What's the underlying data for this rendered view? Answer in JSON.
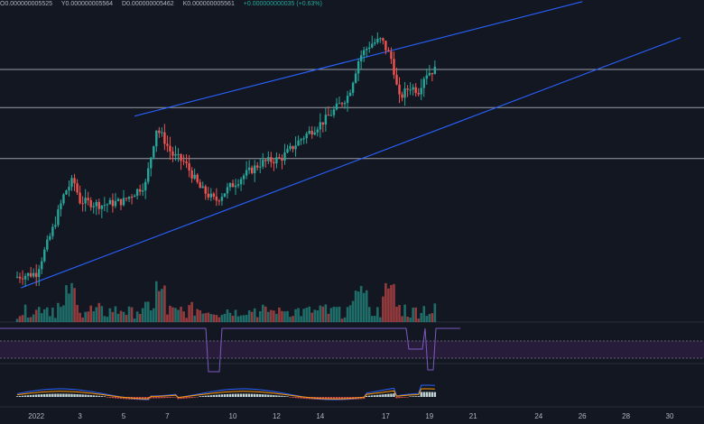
{
  "legend": {
    "open": "0.000000005525",
    "high": "0.000000005564",
    "low": "0.000000005462",
    "close": "0.000000005561",
    "change": "+0.000000000035 (+0.63%)"
  },
  "colors": {
    "background": "#131722",
    "up": "#26a69a",
    "down": "#ef5350",
    "channel": "#2962ff",
    "horizontal_line": "#b2b5be",
    "rsi_line": "#7e57c2",
    "rsi_band": "#2a1e3d",
    "macd_line": "#2962ff",
    "signal_line": "#ff9800"
  },
  "x_axis": {
    "ticks": [
      {
        "label": "2022",
        "day": 1
      },
      {
        "label": "3",
        "day": 3
      },
      {
        "label": "5",
        "day": 5
      },
      {
        "label": "7",
        "day": 7
      },
      {
        "label": "10",
        "day": 10
      },
      {
        "label": "12",
        "day": 12
      },
      {
        "label": "14",
        "day": 14
      },
      {
        "label": "17",
        "day": 17
      },
      {
        "label": "19",
        "day": 19
      },
      {
        "label": "21",
        "day": 21
      },
      {
        "label": "24",
        "day": 24
      },
      {
        "label": "26",
        "day": 26
      },
      {
        "label": "28",
        "day": 28
      },
      {
        "label": "30",
        "day": 30
      }
    ]
  },
  "chart_data": {
    "type": "candlestick",
    "x_unit": "day of January 2022",
    "close_series": [
      {
        "day": 0.0,
        "close": 4.1
      },
      {
        "day": 1.0,
        "close": 4.2
      },
      {
        "day": 1.8,
        "close": 5.3
      },
      {
        "day": 2.3,
        "close": 6.1
      },
      {
        "day": 2.7,
        "close": 6.4
      },
      {
        "day": 3.0,
        "close": 5.9
      },
      {
        "day": 4.0,
        "close": 5.8
      },
      {
        "day": 5.0,
        "close": 5.9
      },
      {
        "day": 6.0,
        "close": 6.3
      },
      {
        "day": 6.5,
        "close": 7.6
      },
      {
        "day": 6.8,
        "close": 7.4
      },
      {
        "day": 7.2,
        "close": 7.0
      },
      {
        "day": 7.8,
        "close": 6.8
      },
      {
        "day": 8.5,
        "close": 6.2
      },
      {
        "day": 9.2,
        "close": 5.9
      },
      {
        "day": 9.8,
        "close": 6.2
      },
      {
        "day": 10.5,
        "close": 6.5
      },
      {
        "day": 11.3,
        "close": 6.8
      },
      {
        "day": 12.2,
        "close": 6.9
      },
      {
        "day": 13.2,
        "close": 7.4
      },
      {
        "day": 14.2,
        "close": 7.8
      },
      {
        "day": 15.3,
        "close": 8.4
      },
      {
        "day": 15.8,
        "close": 9.3
      },
      {
        "day": 16.3,
        "close": 9.6
      },
      {
        "day": 16.8,
        "close": 9.7
      },
      {
        "day": 17.3,
        "close": 9.2
      },
      {
        "day": 17.6,
        "close": 8.3
      },
      {
        "day": 18.1,
        "close": 8.6
      },
      {
        "day": 18.5,
        "close": 8.5
      },
      {
        "day": 18.8,
        "close": 8.9
      },
      {
        "day": 19.3,
        "close": 9.0
      }
    ],
    "horizontal_levels": [
      9.0,
      8.1,
      6.9
    ],
    "channel": {
      "upper": [
        {
          "day": 5.5,
          "price": 7.9
        },
        {
          "day": 26.0,
          "price": 10.6
        }
      ],
      "lower": [
        {
          "day": 0.3,
          "price": 3.85
        },
        {
          "day": 30.5,
          "price": 9.75
        }
      ]
    },
    "panels": [
      "price",
      "volume",
      "rsi",
      "macd"
    ]
  }
}
